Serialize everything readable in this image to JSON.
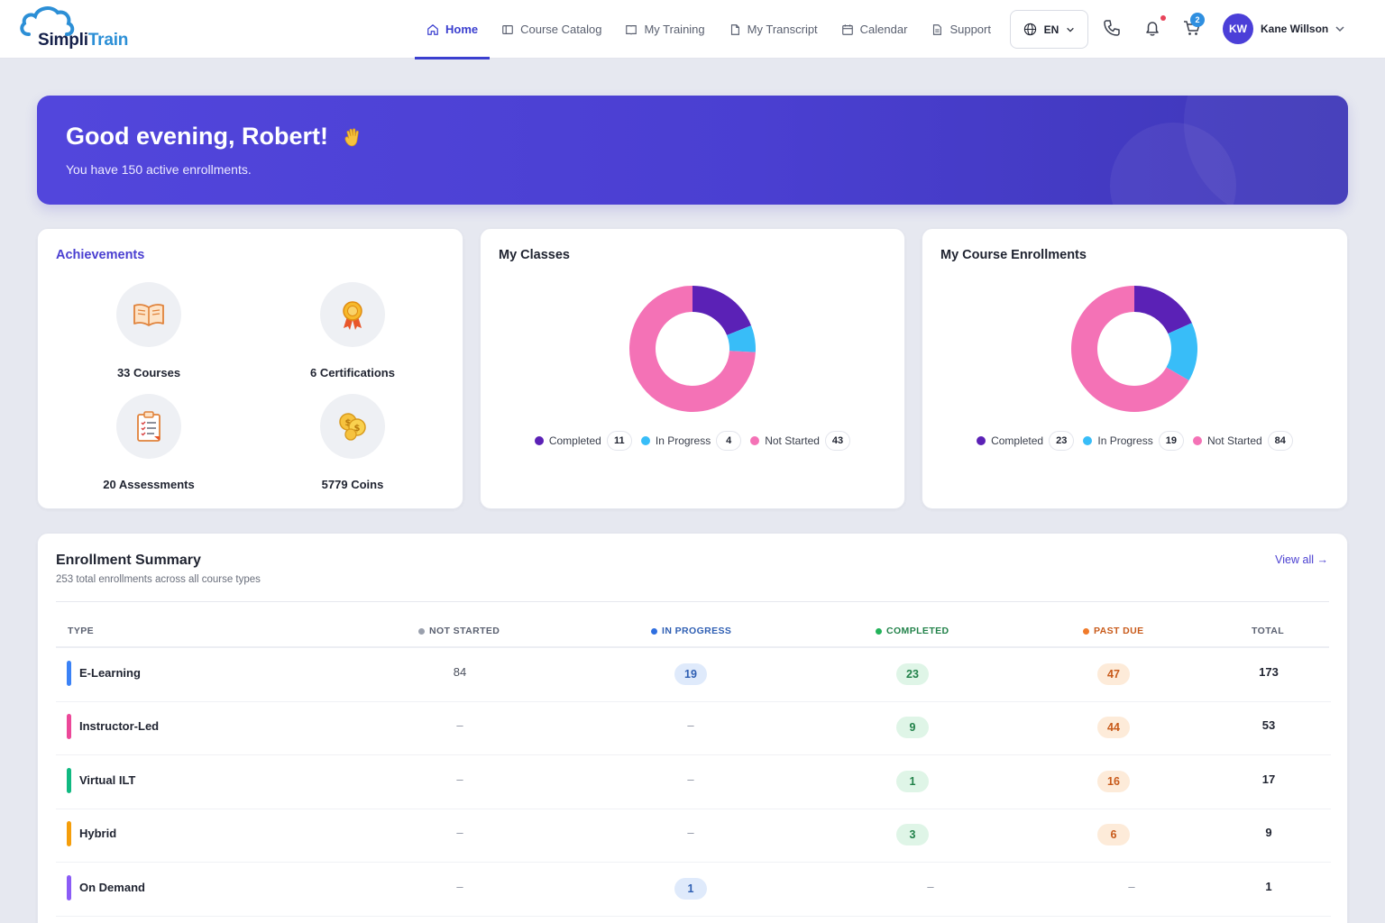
{
  "brand": {
    "name_a": "Simpli",
    "name_b": "Train"
  },
  "nav": [
    {
      "label": "Home",
      "icon": "home-icon",
      "active": true
    },
    {
      "label": "Course Catalog",
      "icon": "catalog-icon"
    },
    {
      "label": "My Training",
      "icon": "book-icon"
    },
    {
      "label": "My Transcript",
      "icon": "document-icon"
    },
    {
      "label": "Calendar",
      "icon": "calendar-icon"
    },
    {
      "label": "Support",
      "icon": "support-icon"
    }
  ],
  "language": "EN",
  "cart_count": "2",
  "user": {
    "initials": "KW",
    "name": "Kane Willson"
  },
  "banner": {
    "greeting": "Good evening, Robert!",
    "subtitle": "You have 150 active enrollments."
  },
  "achievements": {
    "title": "Achievements",
    "items": [
      {
        "label": "33 Courses",
        "icon": "open-book-icon"
      },
      {
        "label": "6 Certifications",
        "icon": "award-ribbon-icon"
      },
      {
        "label": "20 Assessments",
        "icon": "clipboard-checklist-icon"
      },
      {
        "label": "5779 Coins",
        "icon": "coins-icon"
      }
    ]
  },
  "colors": {
    "completed": "#5b21b6",
    "in_progress": "#38bdf8",
    "not_started": "#f472b6",
    "accent": "#4a3fd1"
  },
  "my_classes": {
    "title": "My Classes",
    "legend": [
      {
        "label": "Completed",
        "count": "11"
      },
      {
        "label": "In Progress",
        "count": "4"
      },
      {
        "label": "Not Started",
        "count": "43"
      }
    ]
  },
  "my_enrollments": {
    "title": "My Course Enrollments",
    "legend": [
      {
        "label": "Completed",
        "count": "23"
      },
      {
        "label": "In Progress",
        "count": "19"
      },
      {
        "label": "Not Started",
        "count": "84"
      }
    ]
  },
  "chart_data": [
    {
      "type": "pie",
      "title": "My Classes",
      "categories": [
        "Completed",
        "In Progress",
        "Not Started"
      ],
      "values": [
        11,
        4,
        43
      ],
      "donut": true
    },
    {
      "type": "pie",
      "title": "My Course Enrollments",
      "categories": [
        "Completed",
        "In Progress",
        "Not Started"
      ],
      "values": [
        23,
        19,
        84
      ],
      "donut": true
    }
  ],
  "summary": {
    "title": "Enrollment Summary",
    "subtitle": "253 total enrollments across all course types",
    "view_all": "View all →",
    "headers": {
      "type": "TYPE",
      "not_started": "NOT STARTED",
      "in_progress": "IN PROGRESS",
      "completed": "COMPLETED",
      "past_due": "PAST DUE",
      "total": "TOTAL"
    },
    "rows": [
      {
        "type": "E-Learning",
        "color": "#3b82f6",
        "not_started": "84",
        "in_progress": "19",
        "completed": "23",
        "past_due": "47",
        "total": "173"
      },
      {
        "type": "Instructor-Led",
        "color": "#ec4899",
        "not_started": "–",
        "in_progress": "–",
        "completed": "9",
        "past_due": "44",
        "total": "53"
      },
      {
        "type": "Virtual ILT",
        "color": "#10b981",
        "not_started": "–",
        "in_progress": "–",
        "completed": "1",
        "past_due": "16",
        "total": "17"
      },
      {
        "type": "Hybrid",
        "color": "#f59e0b",
        "not_started": "–",
        "in_progress": "–",
        "completed": "3",
        "past_due": "6",
        "total": "9"
      },
      {
        "type": "On Demand",
        "color": "#8b5cf6",
        "not_started": "–",
        "in_progress": "1",
        "completed": "–",
        "past_due": "–",
        "total": "1"
      }
    ]
  }
}
